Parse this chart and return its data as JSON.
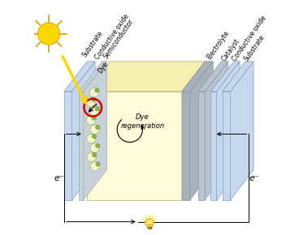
{
  "bg_color": "#ffffff",
  "box_face_color": "#FEFBDA",
  "box_top_color": "#F5F0B0",
  "box_right_color": "#E8E4A8",
  "sub_left_color": "#C5D8EE",
  "cond_left_color": "#C8D0D8",
  "electrolyte_color": "#A8B0B8",
  "catalyst_color": "#B8C4CC",
  "cond_right_color": "#C5D8EE",
  "sub_right_color": "#C5D8EE",
  "dye_ball_light": "#F0F4D0",
  "dye_ball_dark": "#90B840",
  "circle_color": "#CC0000",
  "sun_color": "#FFD700",
  "sun_ray_color": "#DAA000",
  "beam_color": "#FFD700",
  "arrow_color": "#000000",
  "electron_label": "e⁻",
  "dye_regen_label": "Dye\nregeneration",
  "labels_left": [
    "Substrate",
    "Conductive oxide",
    "Semiconductor",
    "Dye"
  ],
  "labels_right": [
    "Electrolyte",
    "Catalyst",
    "Conductive oxide",
    "Substrate"
  ],
  "label_fontsize": 5.5,
  "label_rotation": 55
}
